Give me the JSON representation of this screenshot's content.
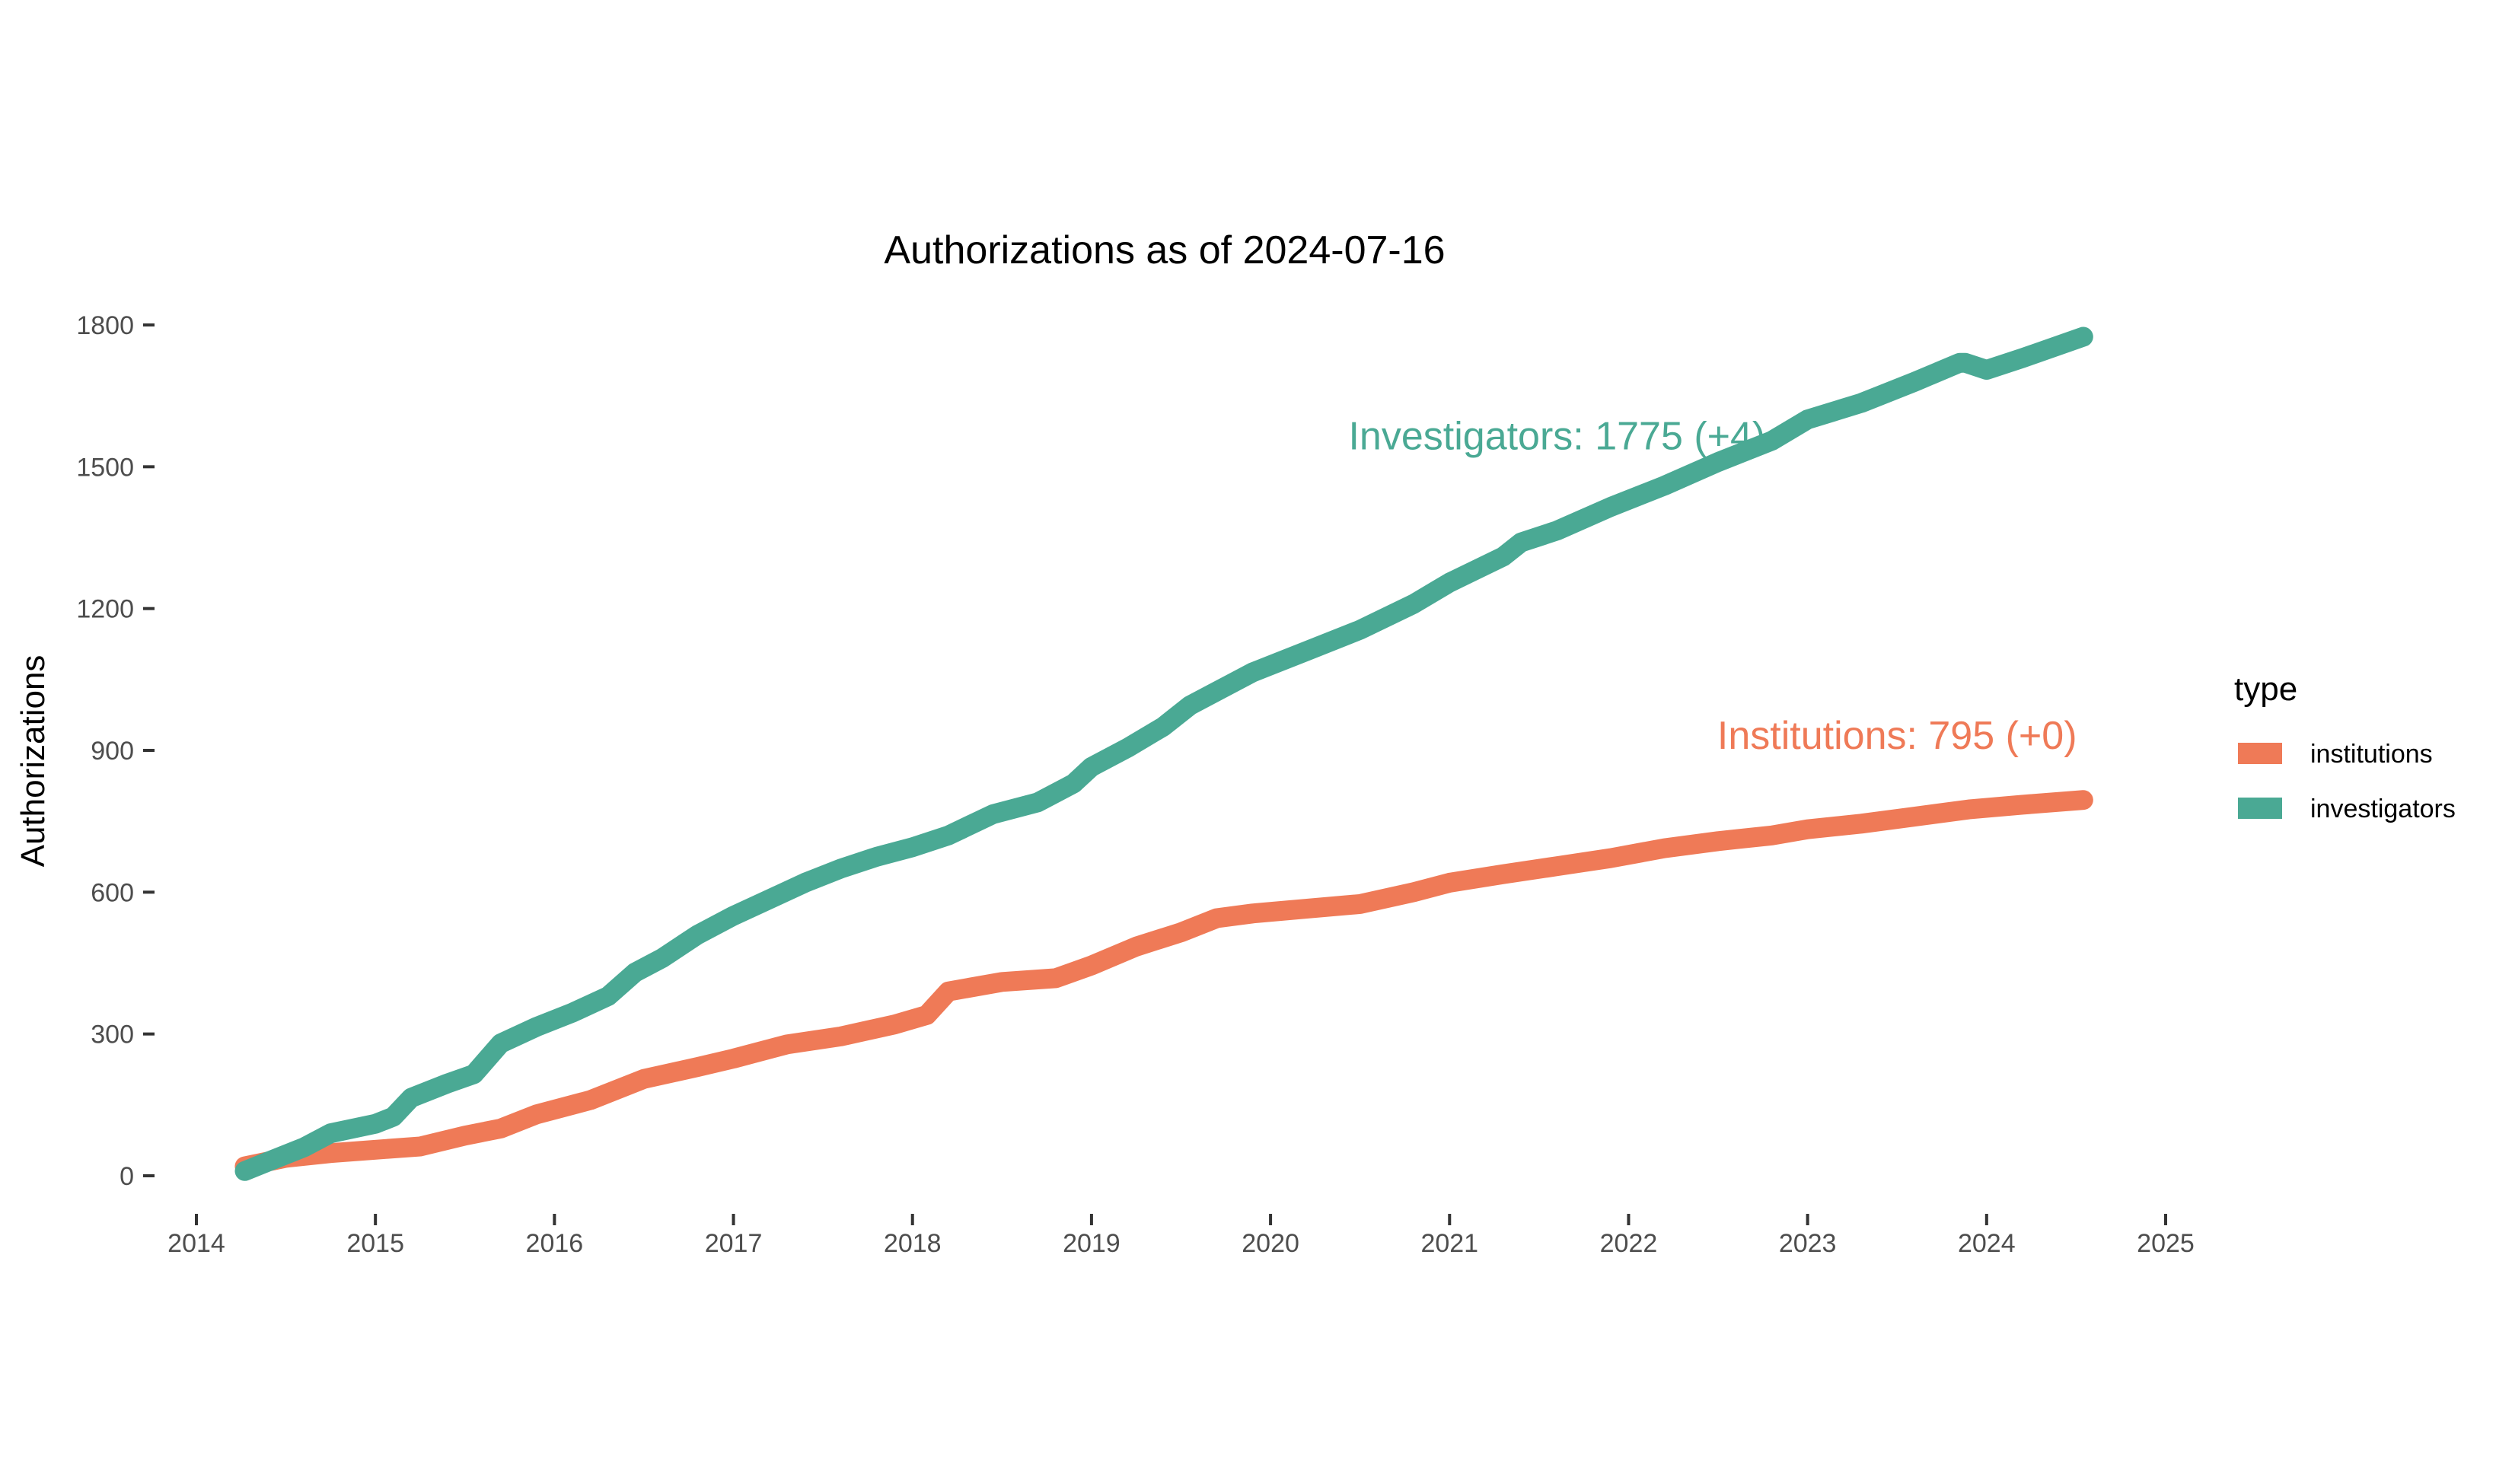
{
  "chart_data": {
    "type": "line",
    "title": "Authorizations as of 2024-07-16",
    "xlabel": "",
    "ylabel": "Authorizations",
    "xlim": [
      2014,
      2025
    ],
    "ylim": [
      0,
      1800
    ],
    "x_ticks": [
      "2014",
      "2015",
      "2016",
      "2017",
      "2018",
      "2019",
      "2020",
      "2021",
      "2022",
      "2023",
      "2024",
      "2025"
    ],
    "y_ticks": [
      "0",
      "300",
      "600",
      "900",
      "1200",
      "1500",
      "1800"
    ],
    "grid": false,
    "legend": {
      "title": "type",
      "position": "right",
      "entries": [
        "institutions",
        "investigators"
      ]
    },
    "annotations": [
      {
        "text": "Investigators: 1775 (+4)",
        "series": "investigators",
        "x": 2021.6,
        "y": 1537
      },
      {
        "text": "Institutions: 795 (+0)",
        "series": "institutions",
        "x": 2023.5,
        "y": 903
      }
    ],
    "series": [
      {
        "name": "institutions",
        "color": "#ef7a57",
        "x": [
          2014.27,
          2014.5,
          2014.75,
          2015.0,
          2015.25,
          2015.5,
          2015.7,
          2015.9,
          2016.2,
          2016.5,
          2016.8,
          2017.0,
          2017.3,
          2017.6,
          2017.9,
          2018.08,
          2018.2,
          2018.5,
          2018.8,
          2019.0,
          2019.25,
          2019.5,
          2019.7,
          2019.9,
          2020.2,
          2020.5,
          2020.8,
          2021.0,
          2021.3,
          2021.6,
          2021.9,
          2022.2,
          2022.5,
          2022.8,
          2023.0,
          2023.3,
          2023.6,
          2023.9,
          2024.2,
          2024.54
        ],
        "y": [
          20,
          38,
          48,
          55,
          62,
          85,
          100,
          130,
          160,
          205,
          230,
          248,
          278,
          295,
          320,
          340,
          390,
          410,
          418,
          445,
          485,
          515,
          545,
          555,
          565,
          575,
          600,
          620,
          638,
          655,
          672,
          693,
          708,
          720,
          733,
          745,
          760,
          775,
          785,
          795
        ]
      },
      {
        "name": "investigators",
        "color": "#4aa994",
        "x": [
          2014.27,
          2014.4,
          2014.6,
          2014.75,
          2015.0,
          2015.1,
          2015.2,
          2015.4,
          2015.55,
          2015.7,
          2015.9,
          2016.1,
          2016.3,
          2016.45,
          2016.6,
          2016.8,
          2017.0,
          2017.2,
          2017.4,
          2017.6,
          2017.8,
          2018.0,
          2018.2,
          2018.45,
          2018.7,
          2018.9,
          2019.0,
          2019.2,
          2019.4,
          2019.55,
          2019.7,
          2019.9,
          2020.2,
          2020.5,
          2020.8,
          2021.0,
          2021.3,
          2021.4,
          2021.6,
          2021.9,
          2022.2,
          2022.5,
          2022.8,
          2023.0,
          2023.3,
          2023.6,
          2023.85,
          2023.88,
          2024.0,
          2024.2,
          2024.54
        ],
        "y": [
          10,
          30,
          60,
          90,
          110,
          125,
          165,
          195,
          215,
          280,
          315,
          345,
          380,
          430,
          460,
          510,
          550,
          585,
          620,
          650,
          675,
          695,
          720,
          765,
          790,
          830,
          865,
          905,
          950,
          995,
          1025,
          1065,
          1110,
          1155,
          1210,
          1255,
          1310,
          1340,
          1365,
          1415,
          1460,
          1510,
          1555,
          1600,
          1635,
          1680,
          1720,
          1720,
          1705,
          1730,
          1775
        ]
      }
    ]
  }
}
